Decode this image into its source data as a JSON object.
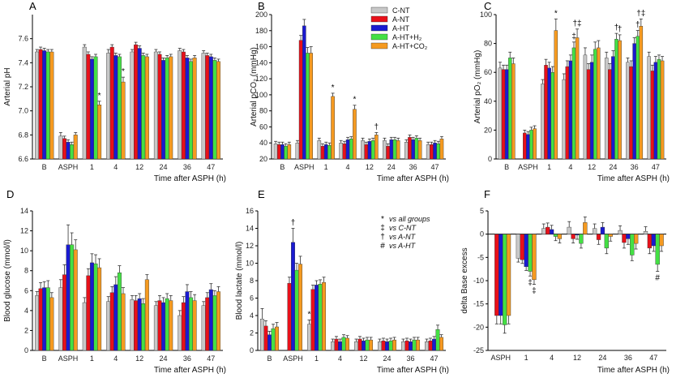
{
  "colors": {
    "C-NT": "#c8c8c8",
    "A-NT": "#e8101a",
    "A-HT": "#1a1ad0",
    "A-HT+H2": "#44e044",
    "A-HT+CO2": "#f59a20"
  },
  "legend": {
    "series": [
      {
        "key": "C-NT",
        "label": "C-NT"
      },
      {
        "key": "A-NT",
        "label": "A-NT"
      },
      {
        "key": "A-HT",
        "label": "A-HT"
      },
      {
        "key": "A-HT+H2",
        "label": "A-HT+H₂"
      },
      {
        "key": "A-HT+CO2",
        "label": "A-HT+CO₂"
      }
    ]
  },
  "symbol_legend": [
    {
      "symbol": "*",
      "text": "vs all groups"
    },
    {
      "symbol": "‡",
      "text": "vs C-NT"
    },
    {
      "symbol": "†",
      "text": "vs A-NT"
    },
    {
      "symbol": "#",
      "text": "vs A-HT"
    }
  ],
  "chart_data": [
    {
      "panel": "A",
      "type": "bar",
      "ylabel": "Arterial pH",
      "xlabel": "Time after ASPH (h)",
      "categories": [
        "B",
        "ASPH",
        "1",
        "4",
        "12",
        "24",
        "36",
        "47"
      ],
      "ylim": [
        6.6,
        7.8
      ],
      "yticks": [
        6.6,
        6.8,
        7.0,
        7.2,
        7.4,
        7.6
      ],
      "series": [
        {
          "key": "C-NT",
          "values": [
            7.49,
            6.79,
            7.53,
            7.48,
            7.49,
            7.49,
            7.5,
            7.48
          ],
          "err": [
            0.02,
            0.03,
            0.02,
            0.03,
            0.02,
            0.02,
            0.02,
            0.02
          ]
        },
        {
          "key": "A-NT",
          "values": [
            7.51,
            6.77,
            7.47,
            7.53,
            7.55,
            7.47,
            7.49,
            7.46
          ],
          "err": [
            0.02,
            0.02,
            0.02,
            0.02,
            0.02,
            0.02,
            0.02,
            0.02
          ]
        },
        {
          "key": "A-HT",
          "values": [
            7.5,
            6.74,
            7.43,
            7.46,
            7.52,
            7.42,
            7.44,
            7.45
          ],
          "err": [
            0.02,
            0.02,
            0.02,
            0.02,
            0.02,
            0.02,
            0.02,
            0.02
          ]
        },
        {
          "key": "A-HT+H2",
          "values": [
            7.49,
            6.72,
            7.45,
            7.45,
            7.46,
            7.44,
            7.41,
            7.42
          ],
          "err": [
            0.02,
            0.02,
            0.02,
            0.02,
            0.02,
            0.02,
            0.02,
            0.02
          ]
        },
        {
          "key": "A-HT+CO2",
          "values": [
            7.49,
            6.8,
            7.05,
            7.24,
            7.45,
            7.45,
            7.44,
            7.41
          ],
          "err": [
            0.02,
            0.02,
            0.03,
            0.04,
            0.02,
            0.02,
            0.02,
            0.02
          ]
        }
      ],
      "annotations": [
        {
          "cat": "1",
          "series": "A-HT+CO2",
          "symbol": "*"
        },
        {
          "cat": "4",
          "series": "A-HT+CO2",
          "symbol": "*"
        }
      ]
    },
    {
      "panel": "B",
      "type": "bar",
      "ylabel": "Arterial pCO₂ (mmHg)",
      "xlabel": "Time after ASPH (h)",
      "categories": [
        "B",
        "ASPH",
        "1",
        "4",
        "12",
        "24",
        "36",
        "47"
      ],
      "ylim": [
        20,
        200
      ],
      "yticks": [
        20,
        40,
        60,
        80,
        100,
        120,
        140,
        160,
        180,
        200
      ],
      "series": [
        {
          "key": "C-NT",
          "values": [
            39,
            40,
            43,
            40,
            43,
            43,
            41,
            38
          ],
          "err": [
            3,
            3,
            3,
            3,
            3,
            3,
            3,
            3
          ]
        },
        {
          "key": "A-NT",
          "values": [
            38,
            168,
            36,
            39,
            38,
            36,
            47,
            38
          ],
          "err": [
            3,
            6,
            3,
            3,
            3,
            3,
            3,
            3
          ]
        },
        {
          "key": "A-HT",
          "values": [
            38,
            186,
            38,
            44,
            42,
            44,
            44,
            40
          ],
          "err": [
            3,
            8,
            3,
            3,
            3,
            3,
            3,
            3
          ]
        },
        {
          "key": "A-HT+H2",
          "values": [
            36,
            152,
            37,
            45,
            43,
            44,
            46,
            39
          ],
          "err": [
            3,
            7,
            3,
            3,
            3,
            3,
            3,
            3
          ]
        },
        {
          "key": "A-HT+CO2",
          "values": [
            38,
            152,
            98,
            82,
            50,
            43,
            43,
            45
          ],
          "err": [
            3,
            8,
            4,
            5,
            3,
            3,
            3,
            3
          ]
        }
      ],
      "annotations": [
        {
          "cat": "1",
          "series": "A-HT+CO2",
          "symbol": "*"
        },
        {
          "cat": "4",
          "series": "A-HT+CO2",
          "symbol": "*"
        },
        {
          "cat": "12",
          "series": "A-HT+CO2",
          "symbol": "†"
        }
      ]
    },
    {
      "panel": "C",
      "type": "bar",
      "ylabel": "Arterial pO₂ (mmHg)",
      "xlabel": "Time after ASPH (h)",
      "categories": [
        "B",
        "ASPH",
        "1",
        "4",
        "12",
        "24",
        "36",
        "47"
      ],
      "ylim": [
        0,
        100
      ],
      "yticks": [
        0,
        20,
        40,
        60,
        80,
        100
      ],
      "series": [
        {
          "key": "C-NT",
          "values": [
            63,
            0,
            52,
            55,
            72,
            70,
            67,
            71
          ],
          "err": [
            4,
            0,
            3,
            4,
            5,
            4,
            3,
            3
          ]
        },
        {
          "key": "A-NT",
          "values": [
            62,
            18,
            65,
            64,
            62,
            62,
            64,
            61
          ],
          "err": [
            3,
            2,
            4,
            4,
            4,
            4,
            4,
            4
          ]
        },
        {
          "key": "A-HT",
          "values": [
            62,
            17,
            63,
            68,
            67,
            71,
            80,
            67
          ],
          "err": [
            3,
            2,
            4,
            4,
            5,
            4,
            4,
            4
          ]
        },
        {
          "key": "A-HT+H2",
          "values": [
            70,
            20,
            60,
            77,
            76,
            83,
            85,
            69
          ],
          "err": [
            4,
            2,
            4,
            4,
            5,
            4,
            4,
            3
          ]
        },
        {
          "key": "A-HT+CO2",
          "values": [
            66,
            21,
            89,
            84,
            77,
            82,
            92,
            68
          ],
          "err": [
            4,
            2,
            8,
            6,
            5,
            4,
            5,
            3
          ]
        }
      ],
      "annotations": [
        {
          "cat": "1",
          "series": "A-HT+CO2",
          "symbol": "*"
        },
        {
          "cat": "4",
          "series": "A-HT+CO2",
          "symbol": "†‡"
        },
        {
          "cat": "4",
          "series": "A-HT+H2",
          "symbol": "‡"
        },
        {
          "cat": "24",
          "series": "A-HT+CO2",
          "symbol": "†"
        },
        {
          "cat": "24",
          "series": "A-HT+H2",
          "symbol": "†"
        },
        {
          "cat": "36",
          "series": "A-HT+CO2",
          "symbol": "†‡"
        },
        {
          "cat": "36",
          "series": "A-HT+H2",
          "symbol": "†"
        }
      ]
    },
    {
      "panel": "D",
      "type": "bar",
      "ylabel": "Blood glucose (mmol/l)",
      "xlabel": "Time after ASPH (h)",
      "categories": [
        "B",
        "ASPH",
        "1",
        "4",
        "12",
        "24",
        "36",
        "47"
      ],
      "ylim": [
        0,
        14
      ],
      "yticks": [
        0,
        2,
        4,
        6,
        8,
        10,
        12,
        14
      ],
      "series": [
        {
          "key": "C-NT",
          "values": [
            5.5,
            6.3,
            4.8,
            4.9,
            5.1,
            4.5,
            3.5,
            4.5
          ],
          "err": [
            0.4,
            0.8,
            0.5,
            0.5,
            0.4,
            0.4,
            0.5,
            0.4
          ]
        },
        {
          "key": "A-NT",
          "values": [
            6.2,
            7.6,
            7.5,
            5.8,
            5.0,
            5.0,
            4.8,
            5.3
          ],
          "err": [
            0.6,
            1.0,
            0.7,
            0.6,
            0.5,
            0.5,
            0.6,
            0.5
          ]
        },
        {
          "key": "A-HT",
          "values": [
            6.3,
            10.6,
            8.8,
            6.6,
            5.2,
            4.8,
            5.9,
            6.1
          ],
          "err": [
            0.6,
            2.0,
            0.9,
            0.8,
            0.5,
            0.5,
            0.7,
            0.6
          ]
        },
        {
          "key": "A-HT+H2",
          "values": [
            6.3,
            10.6,
            8.7,
            7.8,
            4.7,
            5.2,
            5.3,
            5.5
          ],
          "err": [
            0.7,
            1.2,
            0.9,
            0.7,
            0.5,
            0.5,
            0.6,
            0.5
          ]
        },
        {
          "key": "A-HT+CO2",
          "values": [
            5.3,
            10.1,
            8.3,
            5.7,
            7.1,
            5.0,
            5.0,
            5.9
          ],
          "err": [
            0.5,
            1.0,
            0.9,
            0.6,
            0.5,
            0.5,
            0.6,
            0.5
          ]
        }
      ],
      "annotations": []
    },
    {
      "panel": "E",
      "type": "bar",
      "ylabel": "Blood lactate (mmol/l)",
      "xlabel": "Time after ASPH (h)",
      "categories": [
        "B",
        "ASPH",
        "1",
        "4",
        "12",
        "24",
        "36",
        "47"
      ],
      "ylim": [
        0,
        16
      ],
      "yticks": [
        0,
        2,
        4,
        6,
        8,
        10,
        12,
        14,
        16
      ],
      "series": [
        {
          "key": "C-NT",
          "values": [
            3.6,
            0,
            3.0,
            1.0,
            1.0,
            1.0,
            1.0,
            1.0
          ],
          "err": [
            1.2,
            0,
            0.5,
            0.3,
            0.3,
            0.3,
            0.3,
            0.3
          ]
        },
        {
          "key": "A-NT",
          "values": [
            2.8,
            7.7,
            7.0,
            1.3,
            1.3,
            1.1,
            1.1,
            1.1
          ],
          "err": [
            0.6,
            0.7,
            0.5,
            0.3,
            0.3,
            0.3,
            0.3,
            0.3
          ]
        },
        {
          "key": "A-HT",
          "values": [
            1.8,
            12.4,
            7.5,
            1.0,
            1.1,
            1.0,
            1.0,
            1.3
          ],
          "err": [
            0.4,
            1.6,
            0.5,
            0.3,
            0.3,
            0.3,
            0.3,
            0.3
          ]
        },
        {
          "key": "A-HT+H2",
          "values": [
            2.5,
            9.2,
            7.6,
            1.5,
            1.2,
            1.1,
            1.2,
            2.4
          ],
          "err": [
            0.5,
            0.8,
            0.5,
            0.3,
            0.3,
            0.3,
            0.3,
            0.5
          ]
        },
        {
          "key": "A-HT+CO2",
          "values": [
            2.7,
            9.9,
            7.8,
            1.4,
            1.2,
            1.2,
            1.2,
            1.5
          ],
          "err": [
            0.5,
            0.9,
            0.6,
            0.3,
            0.3,
            0.3,
            0.3,
            0.3
          ]
        }
      ],
      "annotations": [
        {
          "cat": "ASPH",
          "series": "A-HT",
          "symbol": "†"
        },
        {
          "cat": "1",
          "series": "C-NT",
          "symbol": "*"
        }
      ]
    },
    {
      "panel": "F",
      "type": "bar",
      "ylabel": "delta Base excess",
      "xlabel": "Time after ASPH (h)",
      "categories": [
        "ASPH",
        "1",
        "4",
        "12",
        "24",
        "36",
        "47"
      ],
      "ylim": [
        -25,
        5
      ],
      "yticks": [
        -25,
        -20,
        -15,
        -10,
        -5,
        0,
        5
      ],
      "series": [
        {
          "key": "C-NT",
          "values": [
            0,
            -5.2,
            1.2,
            1.5,
            1.2,
            0.8,
            0.6
          ],
          "err": [
            0,
            0.8,
            1.0,
            1.2,
            1.0,
            1.0,
            1.0
          ]
        },
        {
          "key": "A-NT",
          "values": [
            -17.5,
            -5.5,
            1.5,
            -1.0,
            -1.2,
            -1.8,
            -3.0
          ],
          "err": [
            1.8,
            0.8,
            0.9,
            0.9,
            1.0,
            1.2,
            1.2
          ]
        },
        {
          "key": "A-HT",
          "values": [
            -17.5,
            -7.0,
            1.0,
            -0.2,
            1.5,
            -1.0,
            -2.5
          ],
          "err": [
            1.8,
            0.8,
            0.9,
            0.9,
            1.0,
            1.2,
            1.2
          ]
        },
        {
          "key": "A-HT+H2",
          "values": [
            -19.5,
            -8.0,
            -0.5,
            -2.0,
            -3.0,
            -4.5,
            -6.5
          ],
          "err": [
            1.8,
            1.0,
            0.9,
            1.0,
            1.2,
            1.2,
            1.5
          ]
        },
        {
          "key": "A-HT+CO2",
          "values": [
            -17.5,
            -9.8,
            -1.0,
            2.5,
            -0.5,
            -2.0,
            -2.5
          ],
          "err": [
            1.8,
            1.0,
            0.9,
            1.2,
            1.0,
            1.2,
            1.2
          ]
        }
      ],
      "annotations": [
        {
          "cat": "1",
          "series": "A-HT+CO2",
          "symbol": "‡",
          "below": true
        },
        {
          "cat": "1",
          "series": "A-HT+H2",
          "symbol": "‡",
          "below": true
        },
        {
          "cat": "47",
          "series": "A-HT+H2",
          "symbol": "#",
          "below": true
        }
      ]
    }
  ]
}
